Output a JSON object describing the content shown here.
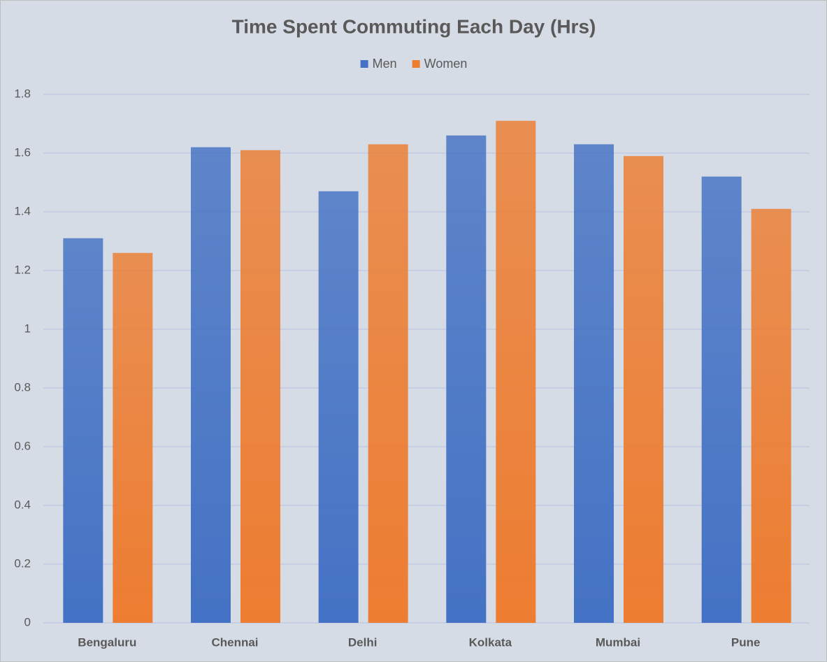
{
  "chart_data": {
    "type": "bar",
    "title": "Time Spent Commuting Each Day (Hrs)",
    "categories": [
      "Bengaluru",
      "Chennai",
      "Delhi",
      "Kolkata",
      "Mumbai",
      "Pune"
    ],
    "series": [
      {
        "name": "Men",
        "color": "#4472c4",
        "values": [
          1.31,
          1.62,
          1.47,
          1.66,
          1.63,
          1.52
        ]
      },
      {
        "name": "Women",
        "color": "#ed7d31",
        "values": [
          1.26,
          1.61,
          1.63,
          1.71,
          1.59,
          1.41
        ]
      }
    ],
    "ylim": [
      0,
      1.8
    ],
    "yticks": [
      0,
      0.2,
      0.4,
      0.6,
      0.8,
      1,
      1.2,
      1.4,
      1.6,
      1.8
    ],
    "grid": true,
    "legend": "top"
  }
}
